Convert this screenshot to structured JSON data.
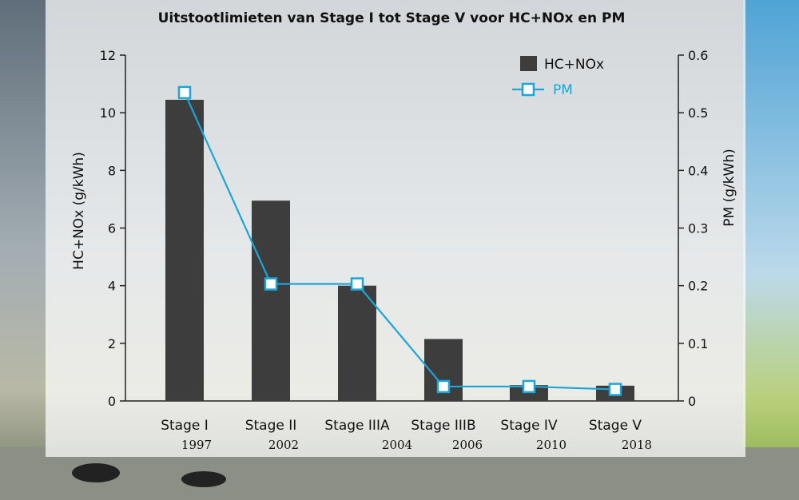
{
  "colors": {
    "bar": "#3d3d3d",
    "pm_line": "#1da5d9",
    "panel": "#ffffff"
  },
  "chart_data": {
    "type": "bar+line",
    "title": "Uitstootlimieten van Stage I tot Stage V voor HC+NOx en PM",
    "categories": [
      "Stage I",
      "Stage II",
      "Stage IIIA",
      "Stage IIIB",
      "Stage IV",
      "Stage V"
    ],
    "years": [
      "1997",
      "2002",
      "2004",
      "2006",
      "2010",
      "2018"
    ],
    "ylabel": "HC+NOx (g/kWh)",
    "y2label": "PM (g/kWh)",
    "ylim": [
      0,
      12
    ],
    "y2lim": [
      0,
      0.6
    ],
    "yticks": [
      "0",
      "2",
      "4",
      "6",
      "8",
      "10",
      "12"
    ],
    "y2ticks": [
      "0",
      "0.1",
      "0.2",
      "0.3",
      "0.4",
      "0.5",
      "0.6"
    ],
    "series": [
      {
        "name": "HC+NOx",
        "type": "bar",
        "axis": "left",
        "values": [
          10.45,
          6.95,
          4.0,
          2.15,
          0.55,
          0.53
        ]
      },
      {
        "name": "PM",
        "type": "line",
        "axis": "right",
        "values": [
          0.535,
          0.203,
          0.203,
          0.025,
          0.025,
          0.02
        ]
      }
    ]
  }
}
